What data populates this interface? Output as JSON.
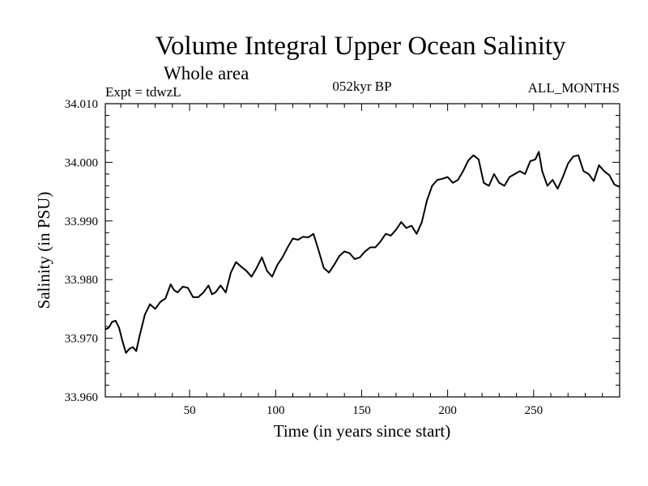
{
  "chart_data": {
    "type": "line",
    "title": "Volume Integral Upper Ocean Salinity",
    "subtitle": "Whole area",
    "experiment": "Expt = tdwzL",
    "period": "052kyr BP",
    "months": "ALL_MONTHS",
    "xlabel": "Time (in years since start)",
    "ylabel": "Salinity (in PSU)",
    "xlim": [
      1,
      300
    ],
    "ylim": [
      33.96,
      34.01
    ],
    "xticks": [
      50,
      100,
      150,
      200,
      250
    ],
    "xtick_labels": [
      "50",
      "100",
      "150",
      "200",
      "250"
    ],
    "yticks": [
      33.96,
      33.97,
      33.98,
      33.99,
      34.0,
      34.01
    ],
    "ytick_labels": [
      "33.960",
      "33.970",
      "33.980",
      "33.990",
      "34.000",
      "34.010"
    ],
    "grid": false,
    "series": [
      {
        "name": "salinity",
        "x": [
          1,
          3,
          5,
          7,
          9,
          11,
          13,
          15,
          17,
          19,
          21,
          24,
          27,
          30,
          33,
          36,
          39,
          41,
          43,
          46,
          49,
          52,
          55,
          58,
          61,
          63,
          65,
          68,
          71,
          74,
          77,
          80,
          83,
          86,
          89,
          92,
          95,
          98,
          101,
          104,
          107,
          110,
          113,
          116,
          119,
          122,
          125,
          128,
          131,
          134,
          137,
          140,
          143,
          146,
          149,
          152,
          155,
          158,
          161,
          164,
          167,
          170,
          173,
          176,
          179,
          182,
          185,
          188,
          191,
          194,
          197,
          200,
          203,
          206,
          209,
          212,
          215,
          218,
          221,
          224,
          227,
          230,
          233,
          236,
          239,
          242,
          245,
          248,
          251,
          253,
          255,
          258,
          261,
          264,
          267,
          270,
          273,
          276,
          279,
          282,
          285,
          288,
          291,
          294,
          297,
          300
        ],
        "values": [
          33.9715,
          33.9718,
          33.9728,
          33.973,
          33.9718,
          33.9695,
          33.9675,
          33.9682,
          33.9685,
          33.9678,
          33.9705,
          33.974,
          33.9758,
          33.975,
          33.9762,
          33.9768,
          33.9792,
          33.9782,
          33.9778,
          33.9788,
          33.9786,
          33.977,
          33.977,
          33.9778,
          33.979,
          33.9775,
          33.9778,
          33.979,
          33.9778,
          33.9812,
          33.983,
          33.9822,
          33.9815,
          33.9805,
          33.982,
          33.9838,
          33.9815,
          33.9805,
          33.9825,
          33.9838,
          33.9855,
          33.987,
          33.9868,
          33.9873,
          33.9872,
          33.9878,
          33.985,
          33.982,
          33.9812,
          33.9825,
          33.984,
          33.9848,
          33.9845,
          33.9835,
          33.9838,
          33.9848,
          33.9855,
          33.9855,
          33.9865,
          33.9878,
          33.9875,
          33.9885,
          33.9898,
          33.9888,
          33.9892,
          33.9878,
          33.9898,
          33.9935,
          33.996,
          33.997,
          33.9972,
          33.9975,
          33.9965,
          33.997,
          33.9985,
          34.0003,
          34.0012,
          34.0005,
          33.9965,
          33.996,
          33.998,
          33.9965,
          33.996,
          33.9975,
          33.998,
          33.9985,
          33.998,
          34.0002,
          34.0005,
          34.0018,
          33.9985,
          33.996,
          33.997,
          33.9955,
          33.9975,
          33.9998,
          34.001,
          34.0012,
          33.9985,
          33.998,
          33.9968,
          33.9995,
          33.9985,
          33.9978,
          33.9962,
          33.9958
        ]
      }
    ]
  }
}
